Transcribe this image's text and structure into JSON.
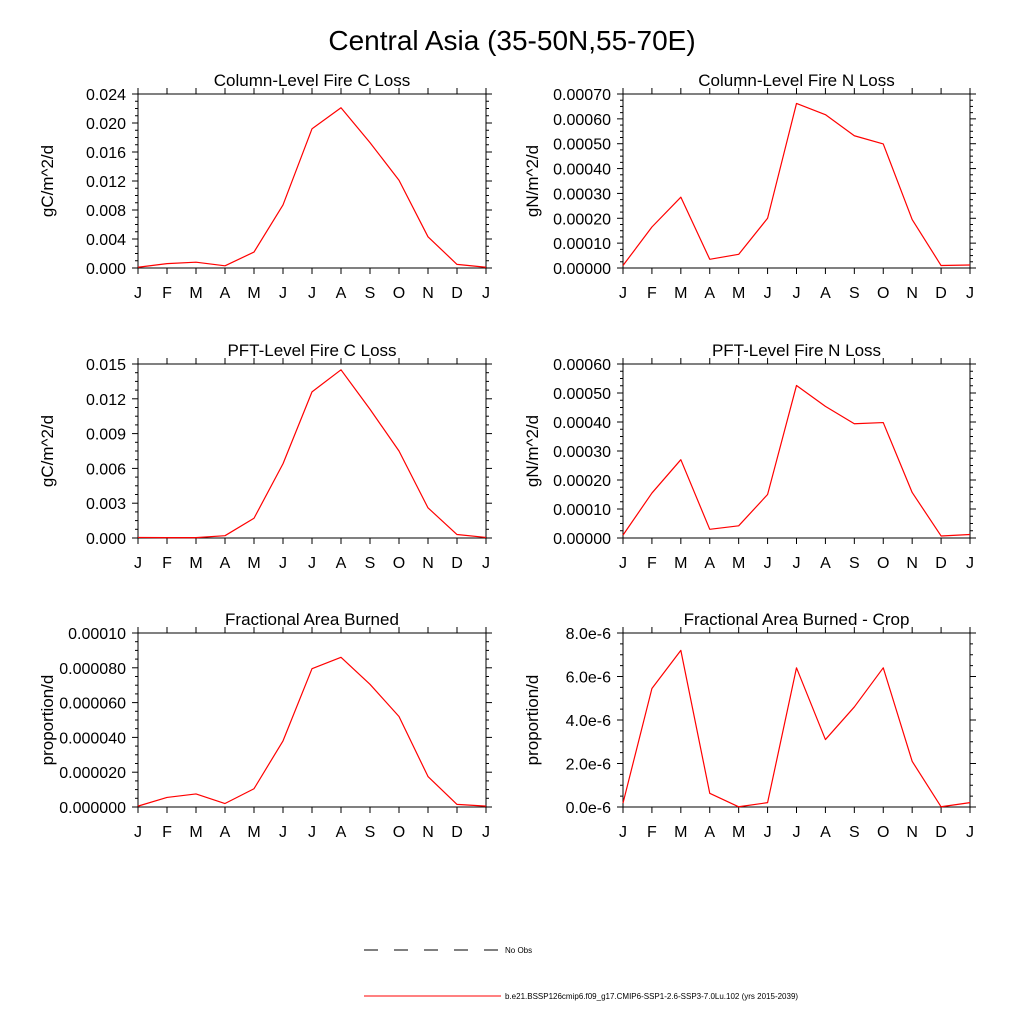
{
  "figure": {
    "title": "Central Asia (35-50N,55-70E)",
    "series_color": "#ff0000",
    "axis_color": "#000000"
  },
  "legend": {
    "items": [
      {
        "label": "No Obs",
        "style": "dashed",
        "color": "#000000"
      },
      {
        "label": "b.e21.BSSP126cmip6.f09_g17.CMIP6-SSP1-2.6-SSP3-7.0Lu.102 (yrs 2015-2039)",
        "style": "solid",
        "color": "#ff0000"
      }
    ]
  },
  "chart_data": [
    {
      "type": "line",
      "title": "Column-Level Fire C Loss",
      "ylabel": "gC/m^2/d",
      "xlabel": "",
      "categories": [
        "J",
        "F",
        "M",
        "A",
        "M",
        "J",
        "J",
        "A",
        "S",
        "O",
        "N",
        "D",
        "J"
      ],
      "ylim": [
        0,
        0.024
      ],
      "yticks": [
        "0.000",
        "0.004",
        "0.008",
        "0.012",
        "0.016",
        "0.020",
        "0.024"
      ],
      "grid": false,
      "series": [
        {
          "name": "b.e21.BSSP126cmip6.f09_g17.CMIP6-SSP1-2.6-SSP3-7.0Lu.102 (yrs 2015-2039)",
          "color": "#ff0000",
          "values": [
            0.0001,
            0.0006,
            0.0008,
            0.0003,
            0.0022,
            0.0087,
            0.0192,
            0.0221,
            0.0173,
            0.0121,
            0.0043,
            0.0005,
            0.0001
          ]
        }
      ]
    },
    {
      "type": "line",
      "title": "Column-Level Fire N Loss",
      "ylabel": "gN/m^2/d",
      "xlabel": "",
      "categories": [
        "J",
        "F",
        "M",
        "A",
        "M",
        "J",
        "J",
        "A",
        "S",
        "O",
        "N",
        "D",
        "J"
      ],
      "ylim": [
        0,
        0.0007
      ],
      "yticks": [
        "0.00000",
        "0.00010",
        "0.00020",
        "0.00030",
        "0.00040",
        "0.00050",
        "0.00060",
        "0.00070"
      ],
      "grid": false,
      "series": [
        {
          "name": "b.e21.BSSP126cmip6.f09_g17.CMIP6-SSP1-2.6-SSP3-7.0Lu.102 (yrs 2015-2039)",
          "color": "#ff0000",
          "values": [
            1e-05,
            0.000165,
            0.000285,
            3.5e-05,
            5.5e-05,
            0.0002,
            0.000662,
            0.000617,
            0.000532,
            0.000499,
            0.000195,
            1e-05,
            1.2e-05
          ]
        }
      ]
    },
    {
      "type": "line",
      "title": "PFT-Level Fire C Loss",
      "ylabel": "gC/m^2/d",
      "xlabel": "",
      "categories": [
        "J",
        "F",
        "M",
        "A",
        "M",
        "J",
        "J",
        "A",
        "S",
        "O",
        "N",
        "D",
        "J"
      ],
      "ylim": [
        0,
        0.015
      ],
      "yticks": [
        "0.000",
        "0.003",
        "0.006",
        "0.009",
        "0.012",
        "0.015"
      ],
      "grid": false,
      "series": [
        {
          "name": "b.e21.BSSP126cmip6.f09_g17.CMIP6-SSP1-2.6-SSP3-7.0Lu.102 (yrs 2015-2039)",
          "color": "#ff0000",
          "values": [
            5e-05,
            3e-05,
            3e-05,
            0.0002,
            0.0017,
            0.0064,
            0.0126,
            0.0145,
            0.0111,
            0.0075,
            0.0026,
            0.0003,
            5e-05
          ]
        }
      ]
    },
    {
      "type": "line",
      "title": "PFT-Level Fire N Loss",
      "ylabel": "gN/m^2/d",
      "xlabel": "",
      "categories": [
        "J",
        "F",
        "M",
        "A",
        "M",
        "J",
        "J",
        "A",
        "S",
        "O",
        "N",
        "D",
        "J"
      ],
      "ylim": [
        0,
        0.0006
      ],
      "yticks": [
        "0.00000",
        "0.00010",
        "0.00020",
        "0.00030",
        "0.00040",
        "0.00050",
        "0.00060"
      ],
      "grid": false,
      "series": [
        {
          "name": "b.e21.BSSP126cmip6.f09_g17.CMIP6-SSP1-2.6-SSP3-7.0Lu.102 (yrs 2015-2039)",
          "color": "#ff0000",
          "values": [
            1e-05,
            0.000155,
            0.00027,
            3e-05,
            4.2e-05,
            0.00015,
            0.000526,
            0.000454,
            0.000394,
            0.000398,
            0.000157,
            7e-06,
            1.2e-05
          ]
        }
      ]
    },
    {
      "type": "line",
      "title": "Fractional Area Burned",
      "ylabel": "proportion/d",
      "xlabel": "",
      "categories": [
        "J",
        "F",
        "M",
        "A",
        "M",
        "J",
        "J",
        "A",
        "S",
        "O",
        "N",
        "D",
        "J"
      ],
      "ylim": [
        0,
        0.0001
      ],
      "yticks": [
        "0.000000",
        "0.000020",
        "0.000040",
        "0.000060",
        "0.000080",
        "0.00010"
      ],
      "grid": false,
      "series": [
        {
          "name": "b.e21.BSSP126cmip6.f09_g17.CMIP6-SSP1-2.6-SSP3-7.0Lu.102 (yrs 2015-2039)",
          "color": "#ff0000",
          "values": [
            5e-07,
            5.5e-06,
            7.5e-06,
            2e-06,
            1.05e-05,
            3.8e-05,
            7.95e-05,
            8.6e-05,
            7.05e-05,
            5.2e-05,
            1.75e-05,
            1.5e-06,
            5e-07
          ]
        }
      ]
    },
    {
      "type": "line",
      "title": "Fractional Area Burned - Crop",
      "ylabel": "proportion/d",
      "xlabel": "",
      "categories": [
        "J",
        "F",
        "M",
        "A",
        "M",
        "J",
        "J",
        "A",
        "S",
        "O",
        "N",
        "D",
        "J"
      ],
      "ylim": [
        0,
        8e-06
      ],
      "yticks": [
        "0.0e-6",
        "2.0e-6",
        "4.0e-6",
        "6.0e-6",
        "8.0e-6"
      ],
      "grid": false,
      "series": [
        {
          "name": "b.e21.BSSP126cmip6.f09_g17.CMIP6-SSP1-2.6-SSP3-7.0Lu.102 (yrs 2015-2039)",
          "color": "#ff0000",
          "values": [
            1.8e-07,
            5.45e-06,
            7.2e-06,
            6.3e-07,
            1e-08,
            2e-07,
            6.4e-06,
            3.1e-06,
            4.6e-06,
            6.4e-06,
            2.1e-06,
            1e-08,
            2e-07
          ]
        }
      ]
    }
  ]
}
